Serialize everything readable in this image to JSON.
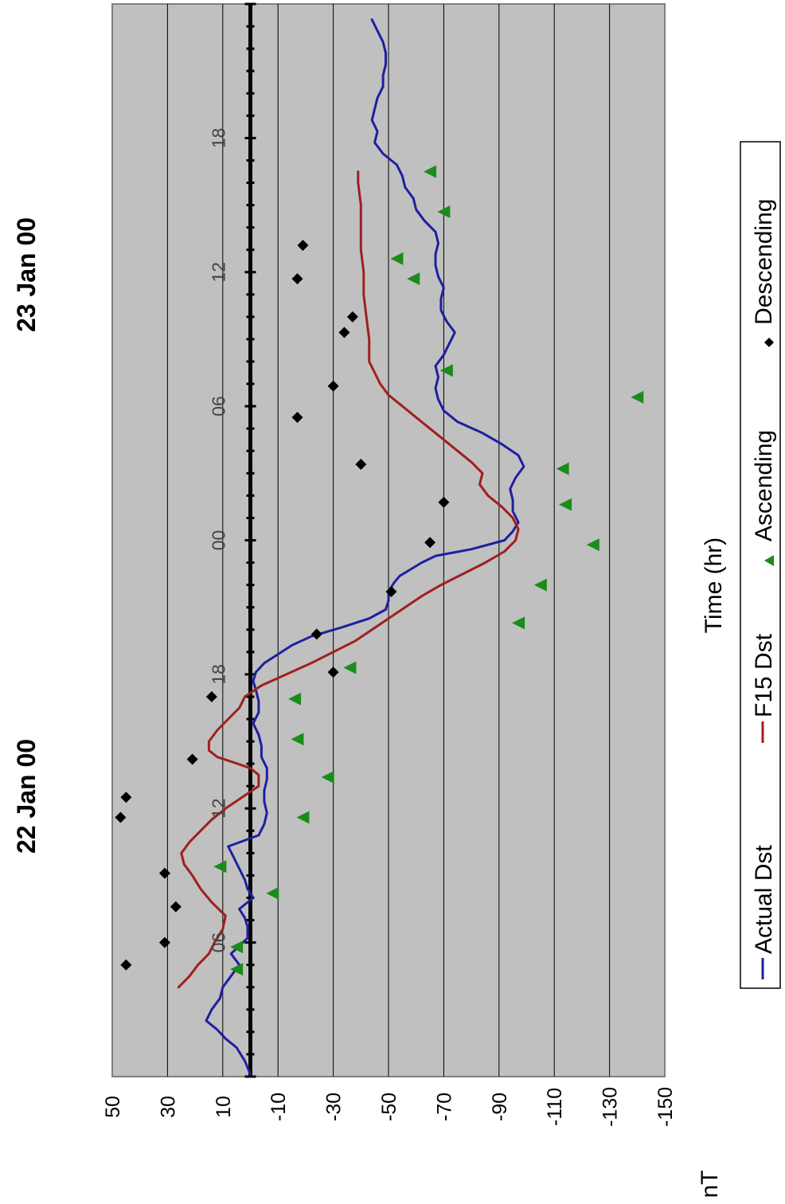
{
  "chart_data": {
    "type": "line",
    "orientation": "rotated-90-clockwise",
    "date_labels": [
      "22 Jan 00",
      "23 Jan 00"
    ],
    "xlabel": "Time (hr)",
    "ylabel": "nT",
    "ylim": [
      -150,
      50
    ],
    "y_ticks": [
      50,
      30,
      10,
      -10,
      -30,
      -50,
      -70,
      -90,
      -110,
      -130,
      -150
    ],
    "x_range_hours": [
      0,
      48
    ],
    "x_ticks": [
      {
        "hour": 6,
        "label": "06"
      },
      {
        "hour": 12,
        "label": "12"
      },
      {
        "hour": 18,
        "label": "18"
      },
      {
        "hour": 24,
        "label": "00"
      },
      {
        "hour": 30,
        "label": "06"
      },
      {
        "hour": 36,
        "label": "12"
      },
      {
        "hour": 42,
        "label": "18"
      }
    ],
    "grid": true,
    "legend_position": "bottom",
    "series": [
      {
        "name": "Actual Dst",
        "kind": "line",
        "color": "#1f1fa0",
        "x": [
          0.1,
          0.7,
          1.3,
          1.7,
          2.1,
          2.5,
          3.0,
          3.5,
          4.0,
          4.5,
          5.0,
          5.5,
          6.2,
          6.7,
          7.1,
          7.5,
          8.0,
          8.4,
          8.8,
          9.3,
          9.8,
          10.3,
          10.8,
          11.3,
          11.8,
          12.3,
          12.8,
          13.3,
          13.8,
          14.3,
          14.8,
          15.3,
          15.8,
          16.3,
          16.8,
          17.3,
          17.7,
          18.1,
          18.5,
          18.9,
          19.3,
          19.7,
          20.1,
          20.5,
          20.9,
          21.3,
          21.7,
          22.1,
          22.4,
          22.7,
          23.0,
          23.3,
          23.6,
          24.0,
          24.4,
          24.8,
          25.3,
          25.8,
          26.3,
          26.8,
          27.3,
          27.8,
          28.3,
          28.8,
          29.3,
          29.8,
          30.3,
          30.8,
          31.3,
          31.8,
          32.3,
          32.8,
          33.3,
          33.8,
          34.3,
          34.8,
          35.3,
          35.8,
          36.3,
          36.8,
          37.3,
          37.8,
          38.3,
          38.8,
          39.3,
          39.8,
          40.3,
          40.8,
          41.3,
          41.8,
          42.3,
          42.8,
          43.3,
          43.8,
          44.3,
          44.8,
          45.3,
          45.8,
          46.3,
          46.8,
          47.3
        ],
        "y": [
          0,
          2,
          5,
          9,
          12,
          16,
          14,
          11,
          10,
          7,
          4,
          7,
          1,
          1,
          2,
          4,
          -1,
          1,
          2,
          4,
          6,
          8,
          -3,
          -5,
          -6,
          -5,
          -5,
          -6,
          -6,
          -4,
          -4,
          -3,
          -1,
          -3,
          -3,
          -2,
          -1,
          -2,
          -5,
          -10,
          -15,
          -22,
          -33,
          -43,
          -49,
          -50,
          -50,
          -52,
          -54,
          -58,
          -62,
          -67,
          -80,
          -92,
          -95,
          -97,
          -95,
          -95,
          -94,
          -96,
          -99,
          -97,
          -91,
          -84,
          -75,
          -70,
          -68,
          -67,
          -68,
          -67,
          -70,
          -72,
          -74,
          -71,
          -69,
          -69,
          -70,
          -68,
          -67,
          -67,
          -68,
          -67,
          -63,
          -60,
          -59,
          -56,
          -55,
          -53,
          -48,
          -45,
          -46,
          -44,
          -45,
          -46,
          -48,
          -48,
          -49,
          -49,
          -48,
          -46,
          -44
        ]
      },
      {
        "name": "F15 Dst",
        "kind": "line",
        "color": "#a01f1f",
        "x": [
          4.0,
          4.5,
          5.0,
          5.5,
          6.0,
          6.6,
          7.2,
          7.8,
          8.4,
          9.0,
          9.5,
          10.0,
          10.5,
          11.0,
          11.5,
          12.0,
          12.5,
          13.0,
          13.5,
          13.8,
          14.1,
          14.3,
          14.6,
          15.0,
          15.5,
          16.0,
          16.5,
          17.0,
          17.5,
          18.0,
          18.5,
          19.0,
          19.5,
          20.0,
          20.5,
          21.0,
          21.5,
          22.0,
          22.5,
          23.0,
          23.5,
          24.0,
          24.5,
          25.0,
          25.5,
          26.0,
          26.5,
          27.0,
          27.5,
          28.0,
          28.5,
          29.0,
          29.5,
          30.0,
          30.5,
          31.0,
          31.5,
          32.0,
          33.0,
          34.0,
          35.0,
          36.0,
          37.0,
          38.0,
          39.0,
          40.0,
          40.5
        ],
        "y": [
          26,
          22,
          19,
          15,
          13,
          10,
          9,
          14,
          18,
          21,
          24,
          25,
          22,
          18,
          14,
          9,
          3,
          -3,
          -3,
          0,
          7,
          12,
          15,
          15,
          12,
          8,
          4,
          2,
          -4,
          -13,
          -22,
          -30,
          -38,
          -44,
          -50,
          -56,
          -62,
          -69,
          -77,
          -85,
          -92,
          -96,
          -97,
          -95,
          -91,
          -86,
          -83,
          -84,
          -80,
          -75,
          -70,
          -65,
          -60,
          -55,
          -50,
          -47,
          -45,
          -43,
          -43,
          -42,
          -41,
          -41,
          -40,
          -40,
          -40,
          -39,
          -39
        ]
      },
      {
        "name": "Ascending",
        "kind": "scatter",
        "marker": "triangle",
        "color": "#1a8c1a",
        "x": [
          4.8,
          5.8,
          8.2,
          9.4,
          11.6,
          13.4,
          15.1,
          16.9,
          18.3,
          20.3,
          22.0,
          23.8,
          25.6,
          27.2,
          30.4,
          31.6,
          35.7,
          36.6,
          38.7,
          40.5
        ],
        "y": [
          5,
          5,
          -8,
          11,
          -19,
          -28,
          -17,
          -16,
          -36,
          -97,
          -105,
          -124,
          -114,
          -113,
          -140,
          -71,
          -59,
          -53,
          -70,
          -65
        ]
      },
      {
        "name": "Descending",
        "kind": "scatter",
        "marker": "diamond",
        "color": "#000000",
        "x": [
          5.0,
          6.0,
          7.6,
          9.1,
          11.6,
          12.5,
          14.2,
          17.0,
          18.1,
          19.8,
          21.7,
          23.9,
          25.7,
          27.4,
          29.5,
          30.9,
          33.3,
          34.0,
          35.7,
          37.2
        ],
        "y": [
          45,
          31,
          27,
          31,
          47,
          45,
          21,
          14,
          -30,
          -24,
          -51,
          -65,
          -70,
          -40,
          -17,
          -30,
          -34,
          -37,
          -17,
          -19
        ]
      }
    ]
  }
}
